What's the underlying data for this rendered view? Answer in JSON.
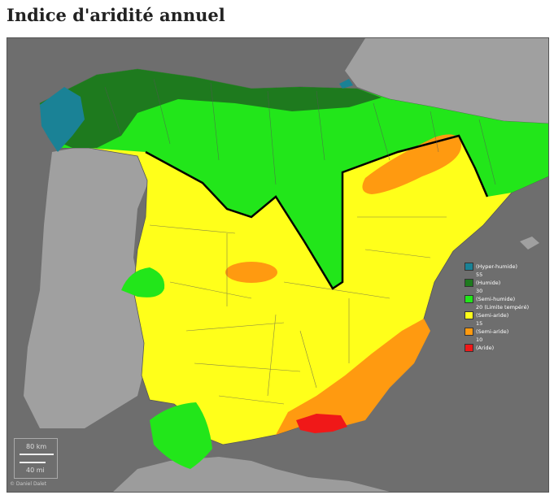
{
  "title": "Indice d'aridité annuel",
  "legend": [
    {
      "label": "(Hyper-humide)",
      "color": "#1a8296",
      "kind": "class"
    },
    {
      "label": "55",
      "kind": "boundary"
    },
    {
      "label": "(Humide)",
      "color": "#1e7a1e",
      "kind": "class"
    },
    {
      "label": "30",
      "kind": "boundary"
    },
    {
      "label": "(Semi-humide)",
      "color": "#22e61a",
      "kind": "class"
    },
    {
      "label": "20 (Limite tempéré)",
      "kind": "boundary"
    },
    {
      "label": "(Semi-aride)",
      "color": "#ffff1a",
      "kind": "class"
    },
    {
      "label": "15",
      "kind": "boundary"
    },
    {
      "label": "(Semi-aride)",
      "color": "#ff9a10",
      "kind": "class"
    },
    {
      "label": "10",
      "kind": "boundary"
    },
    {
      "label": "(Aride)",
      "color": "#f01818",
      "kind": "class"
    }
  ],
  "scale": {
    "km": "80 km",
    "mi": "40 mi"
  },
  "credit": "© Daniel Dalet",
  "colors": {
    "sea": "#6e6e6e",
    "land_other": "#a0a0a0",
    "hyper_humid": "#1a8296",
    "humid": "#1e7a1e",
    "semi_humid": "#22e61a",
    "semi_arid_yellow": "#ffff1a",
    "semi_arid_orange": "#ff9a10",
    "arid": "#f01818"
  }
}
